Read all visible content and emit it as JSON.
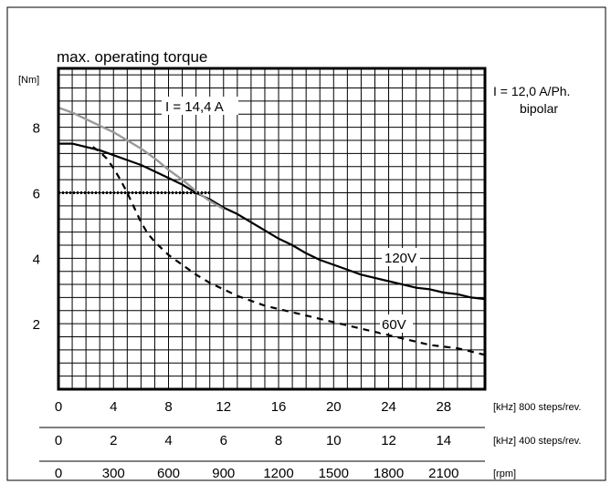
{
  "chart_data": {
    "type": "line",
    "title": "max. operating torque",
    "ylabel": "[Nm]",
    "xlim": [
      0,
      31
    ],
    "ylim": [
      0,
      9.8
    ],
    "grid": true,
    "y_ticks": [
      "2",
      "4",
      "6",
      "8"
    ],
    "x_axes": [
      {
        "unit": "[kHz] 800 steps/rev.",
        "ticks": [
          "0",
          "4",
          "8",
          "12",
          "16",
          "20",
          "24",
          "28"
        ]
      },
      {
        "unit": "[kHz] 400 steps/rev.",
        "ticks": [
          "0",
          "2",
          "4",
          "6",
          "8",
          "10",
          "12",
          "14"
        ]
      },
      {
        "unit": "[rpm]",
        "ticks": [
          "0",
          "300",
          "600",
          "900",
          "1200",
          "1500",
          "1800",
          "2100"
        ]
      }
    ],
    "legend_text": [
      "I = 12,0 A/Ph.",
      "bipolar"
    ],
    "annotations": {
      "current_boost": "I = 14,4 A",
      "v120": "120V",
      "v60": "60V"
    },
    "series": [
      {
        "style": "solid",
        "color": "#000000",
        "label": "120V",
        "x": [
          0,
          1,
          2,
          3,
          4,
          5,
          6,
          7,
          8,
          9,
          10,
          11,
          12,
          13,
          14,
          15,
          16,
          17,
          18,
          19,
          20,
          21,
          22,
          23,
          24,
          25,
          26,
          27,
          28,
          29,
          30,
          31
        ],
        "y": [
          7.5,
          7.5,
          7.4,
          7.3,
          7.15,
          7.0,
          6.85,
          6.65,
          6.45,
          6.25,
          6.0,
          5.8,
          5.55,
          5.35,
          5.1,
          4.85,
          4.6,
          4.4,
          4.15,
          3.95,
          3.8,
          3.65,
          3.5,
          3.4,
          3.3,
          3.2,
          3.1,
          3.05,
          2.95,
          2.9,
          2.8,
          2.75
        ]
      },
      {
        "style": "dashed",
        "color": "#000000",
        "label": "60V",
        "x": [
          2.5,
          3,
          3.5,
          4,
          4.5,
          5,
          5.5,
          6,
          6.5,
          7,
          8,
          9,
          10,
          11,
          12,
          13,
          14,
          15,
          16,
          17,
          18,
          19,
          20,
          21,
          22,
          23,
          24,
          25,
          26,
          27,
          28,
          29,
          30,
          31
        ],
        "y": [
          7.4,
          7.25,
          7.05,
          6.75,
          6.4,
          6.0,
          5.55,
          5.1,
          4.75,
          4.5,
          4.1,
          3.8,
          3.5,
          3.25,
          3.05,
          2.85,
          2.7,
          2.55,
          2.45,
          2.35,
          2.25,
          2.15,
          2.05,
          1.95,
          1.85,
          1.75,
          1.65,
          1.55,
          1.45,
          1.35,
          1.3,
          1.25,
          1.15,
          1.05
        ]
      },
      {
        "style": "solid",
        "color": "#999999",
        "label": "I = 14,4 A",
        "x": [
          0,
          1,
          2,
          3,
          4,
          5,
          6,
          7,
          8,
          9,
          10,
          11,
          12
        ],
        "y": [
          8.6,
          8.45,
          8.25,
          8.05,
          7.85,
          7.6,
          7.35,
          7.05,
          6.7,
          6.4,
          6.05,
          5.75,
          5.5
        ]
      },
      {
        "style": "dotted",
        "color": "#000000",
        "label": "",
        "x": [
          0,
          11
        ],
        "y": [
          6.0,
          6.0
        ]
      }
    ]
  }
}
